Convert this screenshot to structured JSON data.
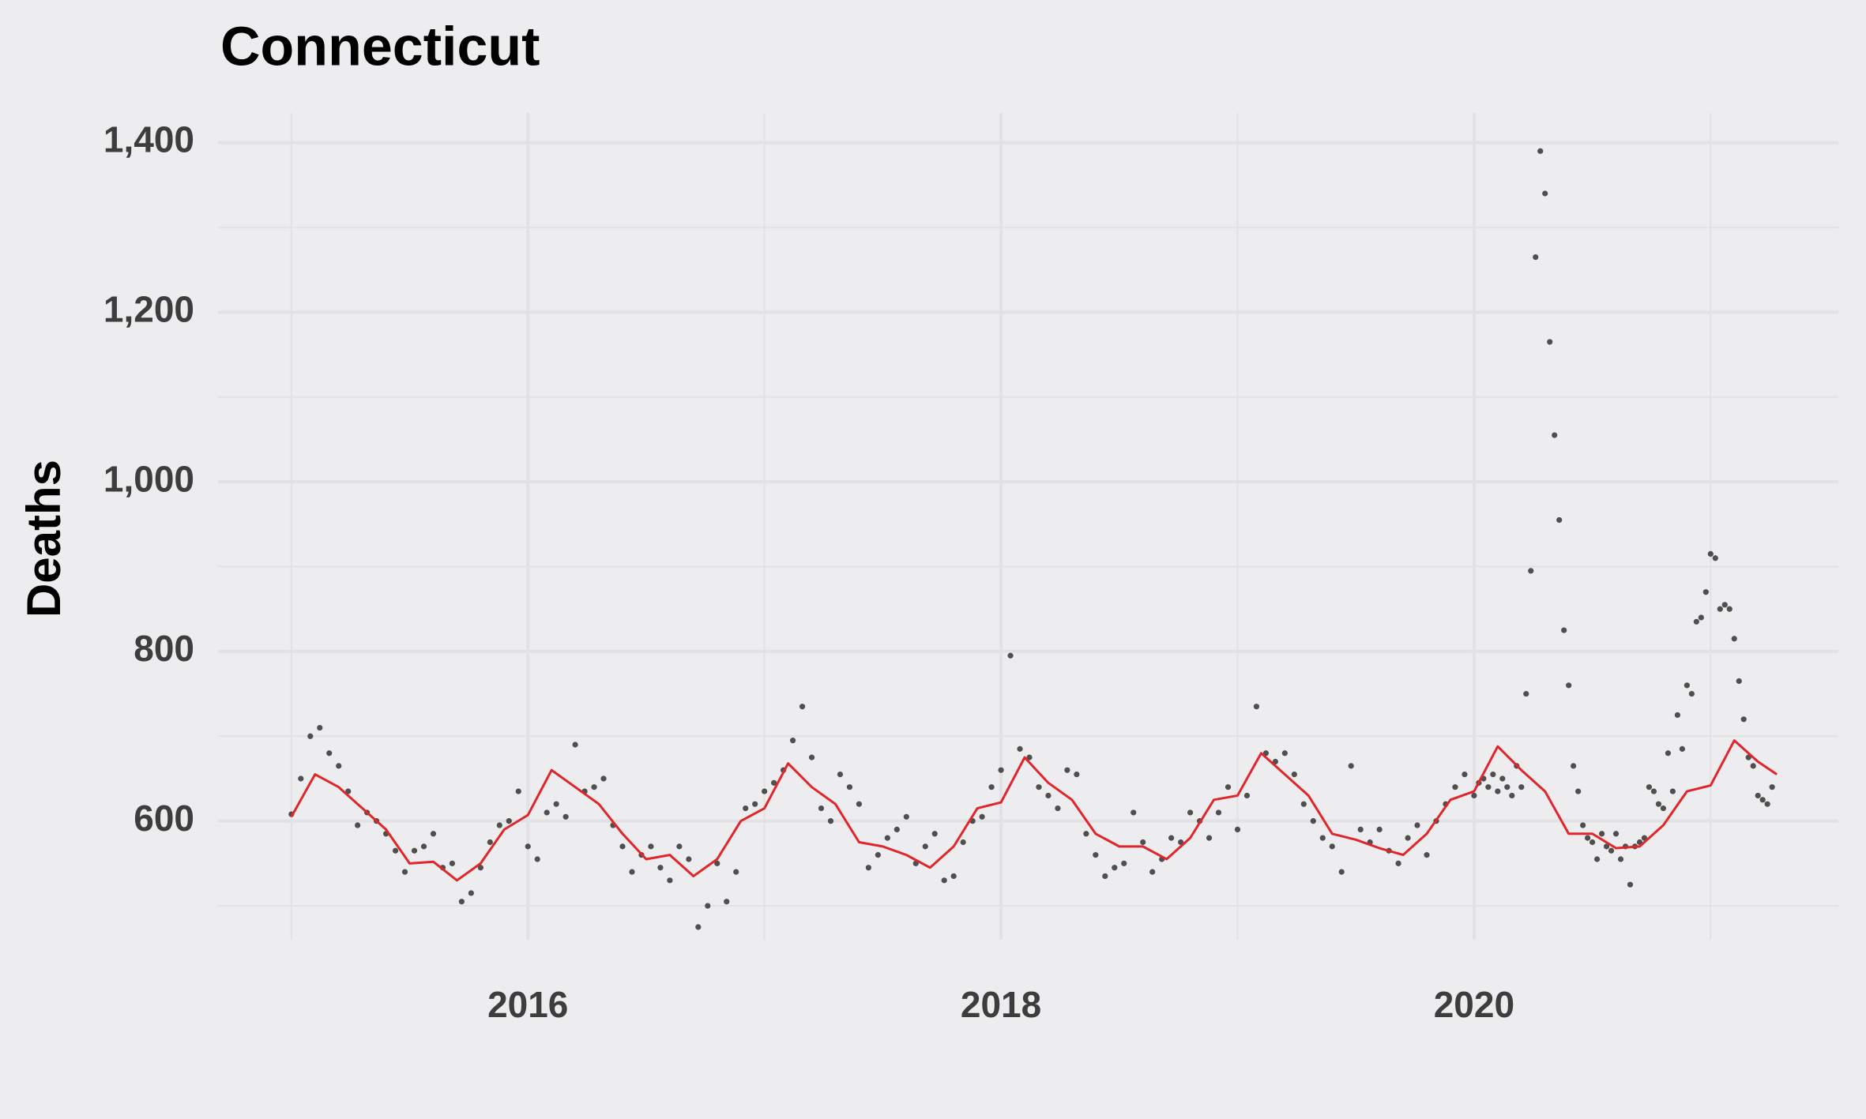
{
  "chart_data": {
    "type": "scatter",
    "title": "Connecticut",
    "y_label": "Deaths",
    "xlim": [
      2014.69,
      2021.54
    ],
    "ylim": [
      460,
      1435
    ],
    "xticks": [
      2016,
      2018,
      2020
    ],
    "x_minor_ticks": [
      2015,
      2017,
      2019,
      2021
    ],
    "yticks": [
      600,
      800,
      {
        "value": 1000,
        "label": "1,000"
      },
      {
        "value": 1200,
        "label": "1,200"
      },
      {
        "value": 1400,
        "label": "1,400"
      }
    ],
    "y_minor_ticks": [
      500,
      700,
      900,
      1100,
      1300
    ],
    "grid": true,
    "background": "#edecee",
    "grid_color": "#e2e1e4",
    "series": [
      {
        "style": "points",
        "color": "#222222",
        "x": [
          2015,
          2015.04,
          2015.08,
          2015.12,
          2015.16,
          2015.2,
          2015.24,
          2015.28,
          2015.32,
          2015.36,
          2015.4,
          2015.44,
          2015.48,
          2015.52,
          2015.56,
          2015.6,
          2015.64,
          2015.68,
          2015.72,
          2015.76,
          2015.8,
          2015.84,
          2015.88,
          2015.92,
          2015.96,
          2016,
          2016.04,
          2016.08,
          2016.12,
          2016.16,
          2016.2,
          2016.24,
          2016.28,
          2016.32,
          2016.36,
          2016.4,
          2016.44,
          2016.48,
          2016.52,
          2016.56,
          2016.6,
          2016.64,
          2016.68,
          2016.72,
          2016.76,
          2016.8,
          2016.84,
          2016.88,
          2016.92,
          2016.96,
          2017,
          2017.04,
          2017.08,
          2017.12,
          2017.16,
          2017.2,
          2017.24,
          2017.28,
          2017.32,
          2017.36,
          2017.4,
          2017.44,
          2017.48,
          2017.52,
          2017.56,
          2017.6,
          2017.64,
          2017.68,
          2017.72,
          2017.76,
          2017.8,
          2017.84,
          2017.88,
          2017.92,
          2017.96,
          2018,
          2018.04,
          2018.08,
          2018.12,
          2018.16,
          2018.2,
          2018.24,
          2018.28,
          2018.32,
          2018.36,
          2018.4,
          2018.44,
          2018.48,
          2018.52,
          2018.56,
          2018.6,
          2018.64,
          2018.68,
          2018.72,
          2018.76,
          2018.8,
          2018.84,
          2018.88,
          2018.92,
          2018.96,
          2019,
          2019.04,
          2019.08,
          2019.12,
          2019.16,
          2019.2,
          2019.24,
          2019.28,
          2019.32,
          2019.36,
          2019.4,
          2019.44,
          2019.48,
          2019.52,
          2019.56,
          2019.6,
          2019.64,
          2019.68,
          2019.72,
          2019.76,
          2019.8,
          2019.84,
          2019.88,
          2019.92,
          2019.96,
          2020,
          2020.02,
          2020.04,
          2020.06,
          2020.08,
          2020.1,
          2020.12,
          2020.14,
          2020.16,
          2020.18,
          2020.2,
          2020.22,
          2020.24,
          2020.26,
          2020.28,
          2020.3,
          2020.32,
          2020.34,
          2020.36,
          2020.38,
          2020.4,
          2020.42,
          2020.44,
          2020.46,
          2020.48,
          2020.5,
          2020.52,
          2020.54,
          2020.56,
          2020.58,
          2020.6,
          2020.62,
          2020.64,
          2020.66,
          2020.68,
          2020.7,
          2020.72,
          2020.74,
          2020.76,
          2020.78,
          2020.8,
          2020.82,
          2020.84,
          2020.86,
          2020.88,
          2020.9,
          2020.92,
          2020.94,
          2020.96,
          2020.98,
          2021,
          2021.02,
          2021.04,
          2021.06,
          2021.08,
          2021.1,
          2021.12,
          2021.14,
          2021.16,
          2021.18,
          2021.2,
          2021.22,
          2021.24,
          2021.26
        ],
        "values": [
          608,
          650,
          700,
          710,
          680,
          665,
          635,
          595,
          610,
          600,
          585,
          565,
          540,
          565,
          570,
          585,
          545,
          550,
          505,
          515,
          545,
          575,
          595,
          600,
          635,
          570,
          555,
          610,
          620,
          605,
          690,
          635,
          640,
          650,
          595,
          570,
          540,
          560,
          570,
          545,
          530,
          570,
          555,
          475,
          500,
          550,
          505,
          540,
          615,
          620,
          635,
          645,
          660,
          695,
          735,
          675,
          615,
          600,
          655,
          640,
          620,
          545,
          560,
          580,
          590,
          605,
          550,
          570,
          585,
          530,
          535,
          575,
          600,
          605,
          640,
          660,
          795,
          685,
          675,
          640,
          630,
          615,
          660,
          655,
          585,
          560,
          535,
          545,
          550,
          610,
          575,
          540,
          555,
          580,
          575,
          610,
          600,
          580,
          610,
          640,
          590,
          630,
          735,
          680,
          670,
          680,
          655,
          620,
          600,
          580,
          570,
          540,
          665,
          590,
          575,
          590,
          565,
          550,
          580,
          595,
          560,
          600,
          620,
          640,
          655,
          630,
          645,
          650,
          640,
          655,
          635,
          650,
          640,
          630,
          665,
          640,
          750,
          895,
          1265,
          1390,
          1340,
          1165,
          1055,
          955,
          825,
          760,
          665,
          635,
          595,
          580,
          575,
          555,
          585,
          570,
          565,
          585,
          555,
          570,
          525,
          570,
          575,
          580,
          640,
          635,
          620,
          615,
          680,
          635,
          725,
          685,
          760,
          750,
          835,
          840,
          870,
          915,
          910,
          850,
          855,
          850,
          815,
          765,
          720,
          675,
          665,
          630,
          625,
          620,
          640
        ]
      },
      {
        "style": "line",
        "color": "#e0262b",
        "x": [
          2015,
          2015.1,
          2015.2,
          2015.3,
          2015.4,
          2015.5,
          2015.6,
          2015.7,
          2015.8,
          2015.9,
          2016,
          2016.1,
          2016.2,
          2016.3,
          2016.4,
          2016.5,
          2016.6,
          2016.7,
          2016.8,
          2016.9,
          2017,
          2017.1,
          2017.2,
          2017.3,
          2017.4,
          2017.5,
          2017.6,
          2017.7,
          2017.8,
          2017.9,
          2018,
          2018.1,
          2018.2,
          2018.3,
          2018.4,
          2018.5,
          2018.6,
          2018.7,
          2018.8,
          2018.9,
          2019,
          2019.1,
          2019.2,
          2019.3,
          2019.4,
          2019.5,
          2019.6,
          2019.7,
          2019.8,
          2019.9,
          2020,
          2020.1,
          2020.2,
          2020.3,
          2020.4,
          2020.5,
          2020.6,
          2020.7,
          2020.8,
          2020.9,
          2021,
          2021.1,
          2021.2,
          2021.28
        ],
        "values": [
          605,
          655,
          640,
          615,
          590,
          550,
          552,
          530,
          550,
          590,
          607,
          660,
          640,
          620,
          585,
          555,
          560,
          535,
          555,
          600,
          615,
          668,
          640,
          620,
          575,
          570,
          560,
          545,
          570,
          615,
          622,
          675,
          645,
          625,
          585,
          570,
          570,
          555,
          580,
          625,
          630,
          680,
          655,
          630,
          585,
          578,
          568,
          560,
          585,
          625,
          635,
          688,
          660,
          635,
          585,
          585,
          568,
          570,
          595,
          635,
          642,
          695,
          670,
          655
        ]
      }
    ]
  }
}
